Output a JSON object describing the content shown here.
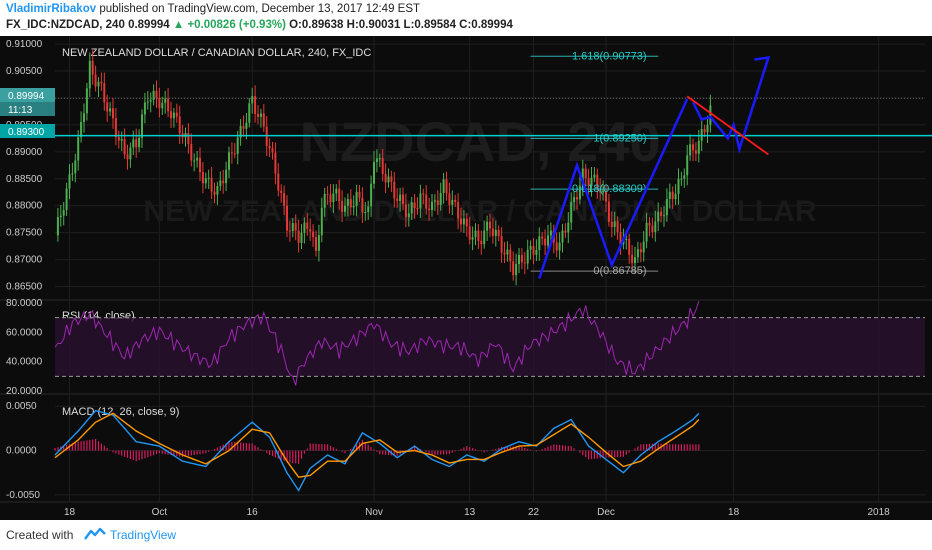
{
  "header": {
    "author": "VladimirRibakov",
    "published_text": "published on TradingView.com, December 13, 2017 12:49 EST",
    "symbol": "FX_IDC:NZDCAD, 240",
    "last": "0.89994",
    "change_arrow": "▲",
    "change": "+0.00826 (+0.93%)",
    "ohlc": "O:0.89638 H:0.90031 L:0.89584 C:0.89994"
  },
  "footer": {
    "created_with": "Created with",
    "brand": "TradingView"
  },
  "watermark": {
    "line1": "NZDCAD, 240",
    "line2": "NEW ZEALAND DOLLAR / CANADIAN DOLLAR"
  },
  "colors": {
    "background": "#0c0c0c",
    "up_candle": "#4caf50",
    "down_candle": "#e53935",
    "rsi_line": "#9c27b0",
    "macd_line": "#2196f3",
    "signal_line": "#ff9800",
    "arrow": "#1a1aff",
    "trendline": "#ff1a1a",
    "level": "#00d0d0"
  },
  "chart_data": [
    {
      "type": "line",
      "title": "NEW ZEALAND DOLLAR / CANADIAN DOLLAR, 240, FX_IDC",
      "ylim": [
        0.8625,
        0.9115
      ],
      "y_ticks": [
        "0.91000",
        "0.90500",
        "0.90000",
        "0.89500",
        "0.89000",
        "0.88500",
        "0.88000",
        "0.87500",
        "0.87000",
        "0.86500"
      ],
      "x_ticks": [
        "18",
        "Oct",
        "16",
        "Nov",
        "13",
        "22",
        "Dec",
        "18",
        "2018"
      ],
      "x_tick_values": [
        5,
        36,
        68,
        110,
        143,
        165,
        190,
        234,
        284
      ],
      "x_range": [
        0,
        300
      ],
      "price_labels": {
        "last": "0.89994",
        "countdown": "11:13",
        "level": "0.89300"
      },
      "horizontal_level": 0.893,
      "fib_levels": [
        {
          "label": "1.618(0.90773)",
          "value": 0.90773
        },
        {
          "label": "1(0.89250)",
          "value": 0.8925
        },
        {
          "label": "0.618(0.88309)",
          "value": 0.88309
        },
        {
          "label": "0(0.86785)",
          "value": 0.86785
        }
      ],
      "series": [
        {
          "x": [
            0,
            4,
            8,
            12,
            16,
            20,
            24,
            28,
            32,
            36,
            40,
            44,
            48,
            52,
            56,
            60,
            64,
            68,
            72,
            76,
            80,
            84,
            88,
            90,
            92,
            96,
            100,
            104,
            108,
            110,
            114,
            118,
            122,
            126,
            130,
            134,
            138,
            142,
            146,
            150,
            154,
            158,
            162,
            166,
            170,
            174,
            178,
            182,
            186,
            188,
            192,
            196,
            200,
            204,
            208,
            212,
            216,
            218,
            222,
            226,
            230,
            234,
            238,
            244,
            250,
            256
          ],
          "values": [
            0.8745,
            0.8825,
            0.8915,
            0.9055,
            0.9015,
            0.8955,
            0.8895,
            0.8915,
            0.9005,
            0.8995,
            0.8975,
            0.8935,
            0.8885,
            0.8845,
            0.8825,
            0.8885,
            0.8935,
            0.8995,
            0.8945,
            0.8865,
            0.8765,
            0.8745,
            0.8765,
            0.8705,
            0.8805,
            0.8825,
            0.8795,
            0.8815,
            0.8785,
            0.8895,
            0.8855,
            0.8815,
            0.8785,
            0.8815,
            0.8795,
            0.8835,
            0.8795,
            0.8755,
            0.8735,
            0.8765,
            0.8725,
            0.8685,
            0.8705,
            0.8725,
            0.8745,
            0.8725,
            0.8795,
            0.8855,
            0.8845,
            0.8835,
            0.8765,
            0.8735,
            0.8695,
            0.8755,
            0.8775,
            0.8815,
            0.8845,
            0.8895,
            0.8915,
            0.8975,
            0.8965,
            0.8915,
            0.8925,
            0.8915,
            0.8905,
            0.8905
          ]
        }
      ],
      "projection": {
        "x": [
          220,
          223,
          226,
          232,
          234,
          236,
          246
        ],
        "values": [
          0.8992,
          0.896,
          0.8965,
          0.8925,
          0.895,
          0.8905,
          0.9075
        ]
      },
      "trendline": {
        "x": [
          218,
          246
        ],
        "values": [
          0.9003,
          0.8895
        ]
      }
    },
    {
      "type": "line",
      "title": "RSI (14, close)",
      "ylim": [
        18,
        82
      ],
      "y_ticks": [
        "80.0000",
        "60.0000",
        "40.0000",
        "20.0000"
      ],
      "bands": [
        70,
        30
      ],
      "series": [
        {
          "name": "RSI (14, close)",
          "x": [
            0,
            6,
            12,
            18,
            24,
            30,
            36,
            42,
            48,
            54,
            60,
            66,
            72,
            78,
            82,
            86,
            92,
            98,
            104,
            110,
            116,
            122,
            128,
            134,
            140,
            146,
            152,
            158,
            164,
            170,
            176,
            182,
            188,
            194,
            200,
            206,
            212,
            218,
            222
          ],
          "values": [
            48,
            66,
            73,
            58,
            43,
            55,
            61,
            52,
            44,
            38,
            56,
            66,
            71,
            48,
            26,
            40,
            54,
            48,
            56,
            66,
            52,
            47,
            55,
            51,
            50,
            41,
            53,
            35,
            52,
            58,
            66,
            76,
            60,
            40,
            33,
            45,
            57,
            68,
            79
          ]
        }
      ]
    },
    {
      "type": "line",
      "title": "MACD (12, 26, close, 9)",
      "ylim": [
        -0.0058,
        0.0057
      ],
      "y_ticks": [
        "0.0050",
        "0.0000",
        "-0.0050"
      ],
      "series": [
        {
          "name": "MACD",
          "x": [
            0,
            8,
            14,
            20,
            28,
            36,
            44,
            52,
            60,
            68,
            74,
            80,
            84,
            88,
            94,
            100,
            106,
            112,
            118,
            124,
            130,
            136,
            142,
            148,
            154,
            160,
            166,
            172,
            178,
            184,
            190,
            196,
            202,
            208,
            214,
            220,
            222
          ],
          "values": [
            -0.0005,
            0.0022,
            0.0045,
            0.004,
            0.001,
            0.0005,
            -0.0012,
            -0.0018,
            0.001,
            0.0032,
            0.0015,
            -0.0025,
            -0.0045,
            -0.002,
            -0.0005,
            -0.0015,
            0.002,
            0.0008,
            -0.0008,
            0.0005,
            -0.001,
            -0.0018,
            -0.0005,
            -0.0012,
            0.0002,
            0.001,
            0.0005,
            0.0025,
            0.0035,
            0.0005,
            -0.001,
            -0.0025,
            -0.0005,
            0.001,
            0.0022,
            0.0035,
            0.0042
          ]
        },
        {
          "name": "Signal",
          "x": [
            0,
            8,
            14,
            20,
            28,
            36,
            44,
            52,
            60,
            68,
            74,
            80,
            84,
            88,
            94,
            100,
            106,
            112,
            118,
            124,
            130,
            136,
            142,
            148,
            154,
            160,
            166,
            172,
            178,
            184,
            190,
            196,
            202,
            208,
            214,
            220,
            222
          ],
          "values": [
            -0.0008,
            0.0012,
            0.0032,
            0.0042,
            0.0022,
            0.0008,
            -0.0005,
            -0.0015,
            0.0,
            0.0024,
            0.002,
            -0.0012,
            -0.003,
            -0.0028,
            -0.0012,
            -0.0012,
            0.0008,
            0.0012,
            -0.0002,
            0.0,
            -0.0005,
            -0.0014,
            -0.001,
            -0.001,
            -0.0002,
            0.0005,
            0.0006,
            0.0018,
            0.003,
            0.0015,
            -0.0002,
            -0.0018,
            -0.0012,
            0.0002,
            0.0015,
            0.0028,
            0.0035
          ]
        }
      ]
    }
  ]
}
